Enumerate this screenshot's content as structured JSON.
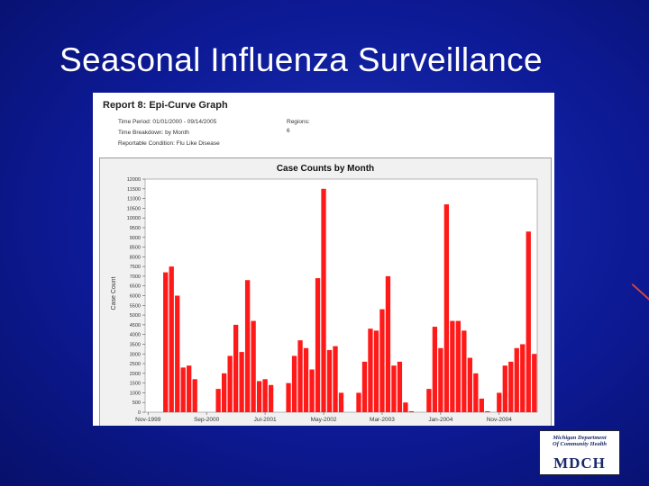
{
  "slide": {
    "title": "Seasonal Influenza Surveillance"
  },
  "report": {
    "heading": "Report 8: Epi-Curve Graph",
    "time_period": "Time Period: 01/01/2000 - 09/14/2005",
    "time_breakdown": "Time Breakdown: by Month",
    "condition": "Reportable Condition: Flu Like Disease",
    "regions_label": "Regions:",
    "regions_value": "6"
  },
  "logo": {
    "line1": "Michigan Department",
    "line2": "Of Community Health",
    "mark": "MDCH"
  },
  "colors": {
    "bar": "#ff1a1a",
    "background": "#0d1a96"
  },
  "chart_data": {
    "type": "bar",
    "title": "Case Counts by Month",
    "ylabel": "Case Count",
    "xlabel": "",
    "ylim": [
      0,
      12000
    ],
    "yticks": [
      0,
      500,
      1000,
      1500,
      2000,
      2500,
      3000,
      3500,
      4000,
      4500,
      5000,
      5500,
      6000,
      6500,
      7000,
      7500,
      8000,
      8500,
      9000,
      9500,
      10000,
      10500,
      11000,
      11500,
      12000
    ],
    "x_tick_labels": [
      {
        "label": "Nov-1999",
        "index": 0
      },
      {
        "label": "Sep-2000",
        "index": 10
      },
      {
        "label": "Jul-2001",
        "index": 20
      },
      {
        "label": "May-2002",
        "index": 30
      },
      {
        "label": "Mar-2003",
        "index": 40
      },
      {
        "label": "Jan-2004",
        "index": 50
      },
      {
        "label": "Nov-2004",
        "index": 60
      }
    ],
    "grid": false,
    "legend": "none",
    "values": [
      0,
      0,
      0,
      7200,
      7500,
      6000,
      2300,
      2400,
      1700,
      0,
      0,
      0,
      1200,
      2000,
      2900,
      4500,
      3100,
      6800,
      4700,
      1600,
      1700,
      1400,
      0,
      0,
      1500,
      2900,
      3700,
      3300,
      2200,
      6900,
      11500,
      3200,
      3400,
      1000,
      0,
      0,
      1000,
      2600,
      4300,
      4200,
      5300,
      7000,
      2400,
      2600,
      500,
      50,
      0,
      0,
      1200,
      4400,
      3300,
      10700,
      4700,
      4700,
      4200,
      2800,
      2000,
      700,
      50,
      0,
      1000,
      2400,
      2600,
      3300,
      3500,
      9300,
      3000
    ]
  }
}
